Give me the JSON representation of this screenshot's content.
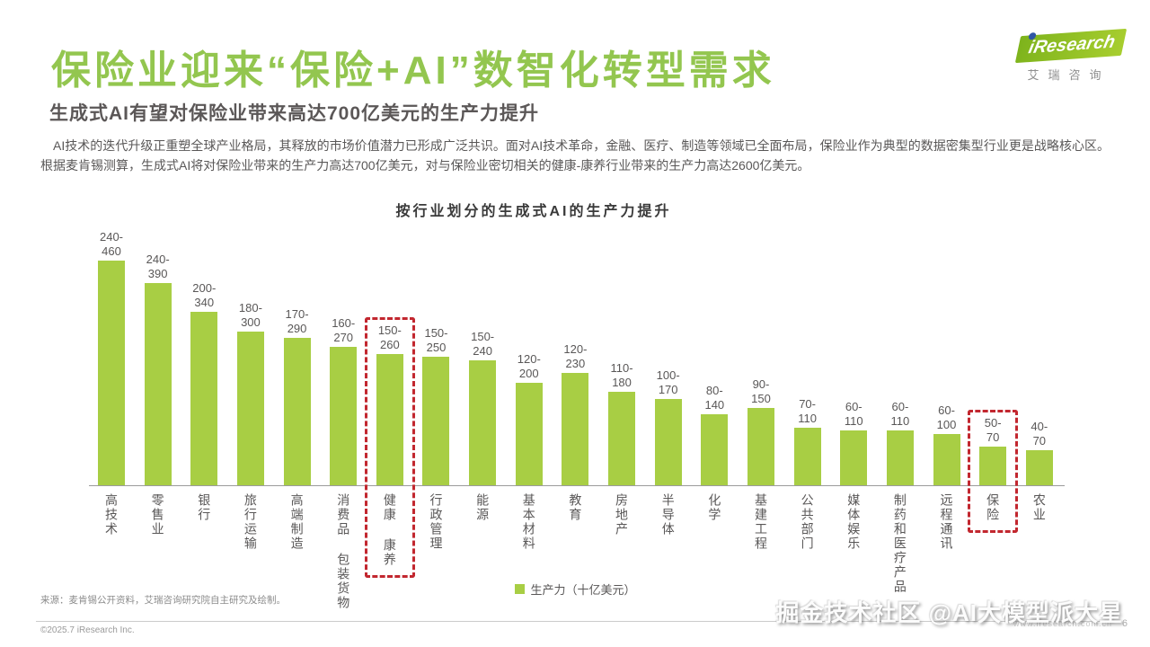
{
  "header": {
    "title": "保险业迎来“保险+AI”数智化转型需求",
    "subtitle": "生成式AI有望对保险业带来高达700亿美元的生产力提升"
  },
  "logo": {
    "brand": "iResearch",
    "brand_cn": "艾瑞咨询"
  },
  "body_text": "AI技术的迭代升级正重塑全球产业格局，其释放的市场价值潜力已形成广泛共识。面对AI技术革命，金融、医疗、制造等领域已全面布局，保险业作为典型的数据密集型行业更是战略核心区。根据麦肯锡测算，生成式AI将对保险业带来的生产力高达700亿美元，对与保险业密切相关的健康-康养行业带来的生产力高达2600亿美元。",
  "chart_data": {
    "type": "bar",
    "title": "按行业划分的生成式AI的生产力提升",
    "legend": "生产力（十亿美元）",
    "legend_position": "bottom-center",
    "ylabel": "",
    "xlabel": "",
    "y_axis_visible": false,
    "grid": false,
    "value_format": "{min}-{max}",
    "bar_color": "#a8ce44",
    "highlight_color": "#c2272f",
    "categories": [
      "高技术",
      "零售业",
      "银行",
      "旅行运输",
      "高端制造",
      "消费品 包装货物",
      "健康 康养",
      "行政管理",
      "能源",
      "基本材料",
      "教育",
      "房地产",
      "半导体",
      "化学",
      "基建工程",
      "公共部门",
      "媒体娱乐",
      "制药和医疗产品",
      "远程通讯",
      "保险",
      "农业"
    ],
    "ranges": [
      [
        240,
        460
      ],
      [
        240,
        390
      ],
      [
        200,
        340
      ],
      [
        180,
        300
      ],
      [
        170,
        290
      ],
      [
        160,
        270
      ],
      [
        150,
        260
      ],
      [
        150,
        250
      ],
      [
        150,
        240
      ],
      [
        120,
        200
      ],
      [
        120,
        230
      ],
      [
        110,
        180
      ],
      [
        100,
        170
      ],
      [
        80,
        140
      ],
      [
        90,
        150
      ],
      [
        70,
        110
      ],
      [
        60,
        110
      ],
      [
        60,
        110
      ],
      [
        60,
        100
      ],
      [
        50,
        70
      ],
      [
        40,
        70
      ]
    ],
    "highlighted_indices": [
      6,
      19
    ],
    "bar_height_basis": "range midpoint",
    "ylim": [
      0,
      460
    ]
  },
  "footer": {
    "source": "来源：麦肯锡公开资料，艾瑞咨询研究院自主研究及绘制。",
    "copyright": "©2025.7 iResearch Inc.",
    "website": "www.iresearch.com.cn",
    "page_number": "6",
    "watermark": "掘金技术社区 @AI大模型派大星"
  }
}
